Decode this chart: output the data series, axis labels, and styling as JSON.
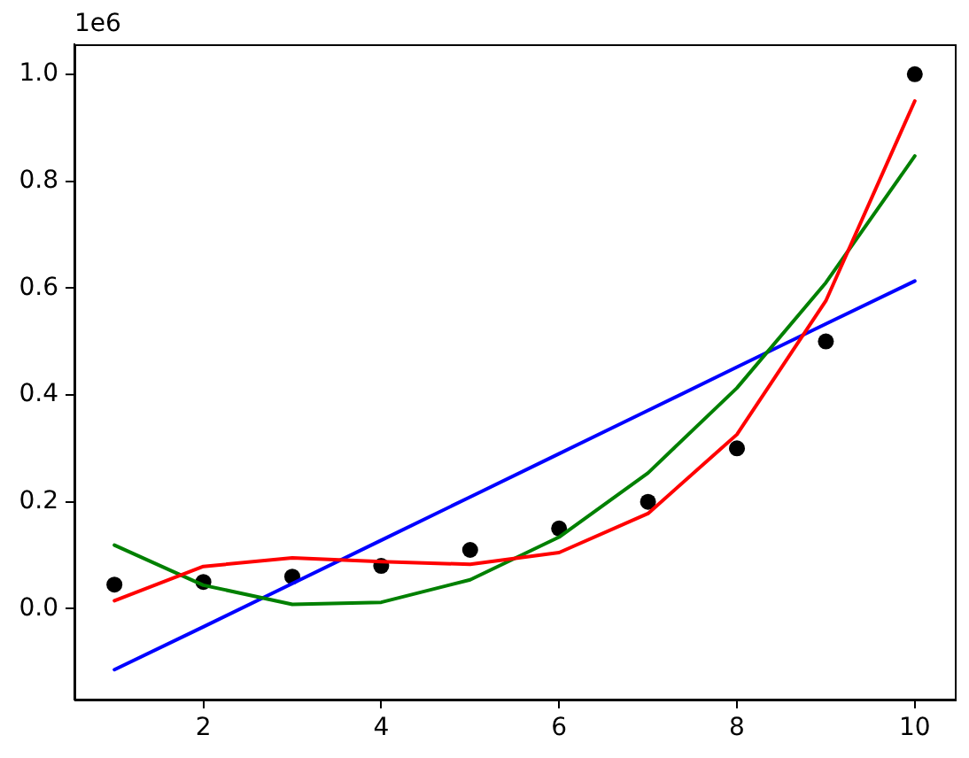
{
  "chart_data": {
    "type": "line",
    "x": [
      1,
      2,
      3,
      4,
      5,
      6,
      7,
      8,
      9,
      10
    ],
    "series": [
      {
        "type": "scatter",
        "marker": "circle",
        "color": "#000000",
        "values": [
          0.045,
          0.05,
          0.06,
          0.08,
          0.11,
          0.15,
          0.2,
          0.3,
          0.5,
          1.0
        ]
      },
      {
        "marker": "none",
        "color": "#0000ff",
        "values": [
          -0.114,
          -0.034,
          0.047,
          0.128,
          0.209,
          0.29,
          0.371,
          0.452,
          0.533,
          0.613
        ]
      },
      {
        "marker": "none",
        "color": "#008000",
        "values": [
          0.119,
          0.044,
          0.008,
          0.012,
          0.054,
          0.134,
          0.254,
          0.413,
          0.61,
          0.847
        ]
      },
      {
        "marker": "none",
        "color": "#ff0000",
        "values": [
          0.015,
          0.079,
          0.095,
          0.088,
          0.083,
          0.105,
          0.178,
          0.326,
          0.576,
          0.95
        ]
      }
    ],
    "xlim": [
      0.55,
      10.45
    ],
    "xticks": [
      2,
      4,
      6,
      8,
      10
    ],
    "ylim": [
      -0.17,
      1.056
    ],
    "yticks": [
      {
        "value": 0,
        "label": "0.0"
      },
      {
        "value": 0.2,
        "label": "0.2"
      },
      {
        "value": 0.4,
        "label": "0.4"
      },
      {
        "value": 0.6,
        "label": "0.6"
      },
      {
        "value": 0.8,
        "label": "0.8"
      },
      {
        "value": 1,
        "label": "1.0"
      }
    ],
    "annotations": [
      "1e6"
    ],
    "grid": false,
    "legend": false,
    "line_style": "solid"
  }
}
